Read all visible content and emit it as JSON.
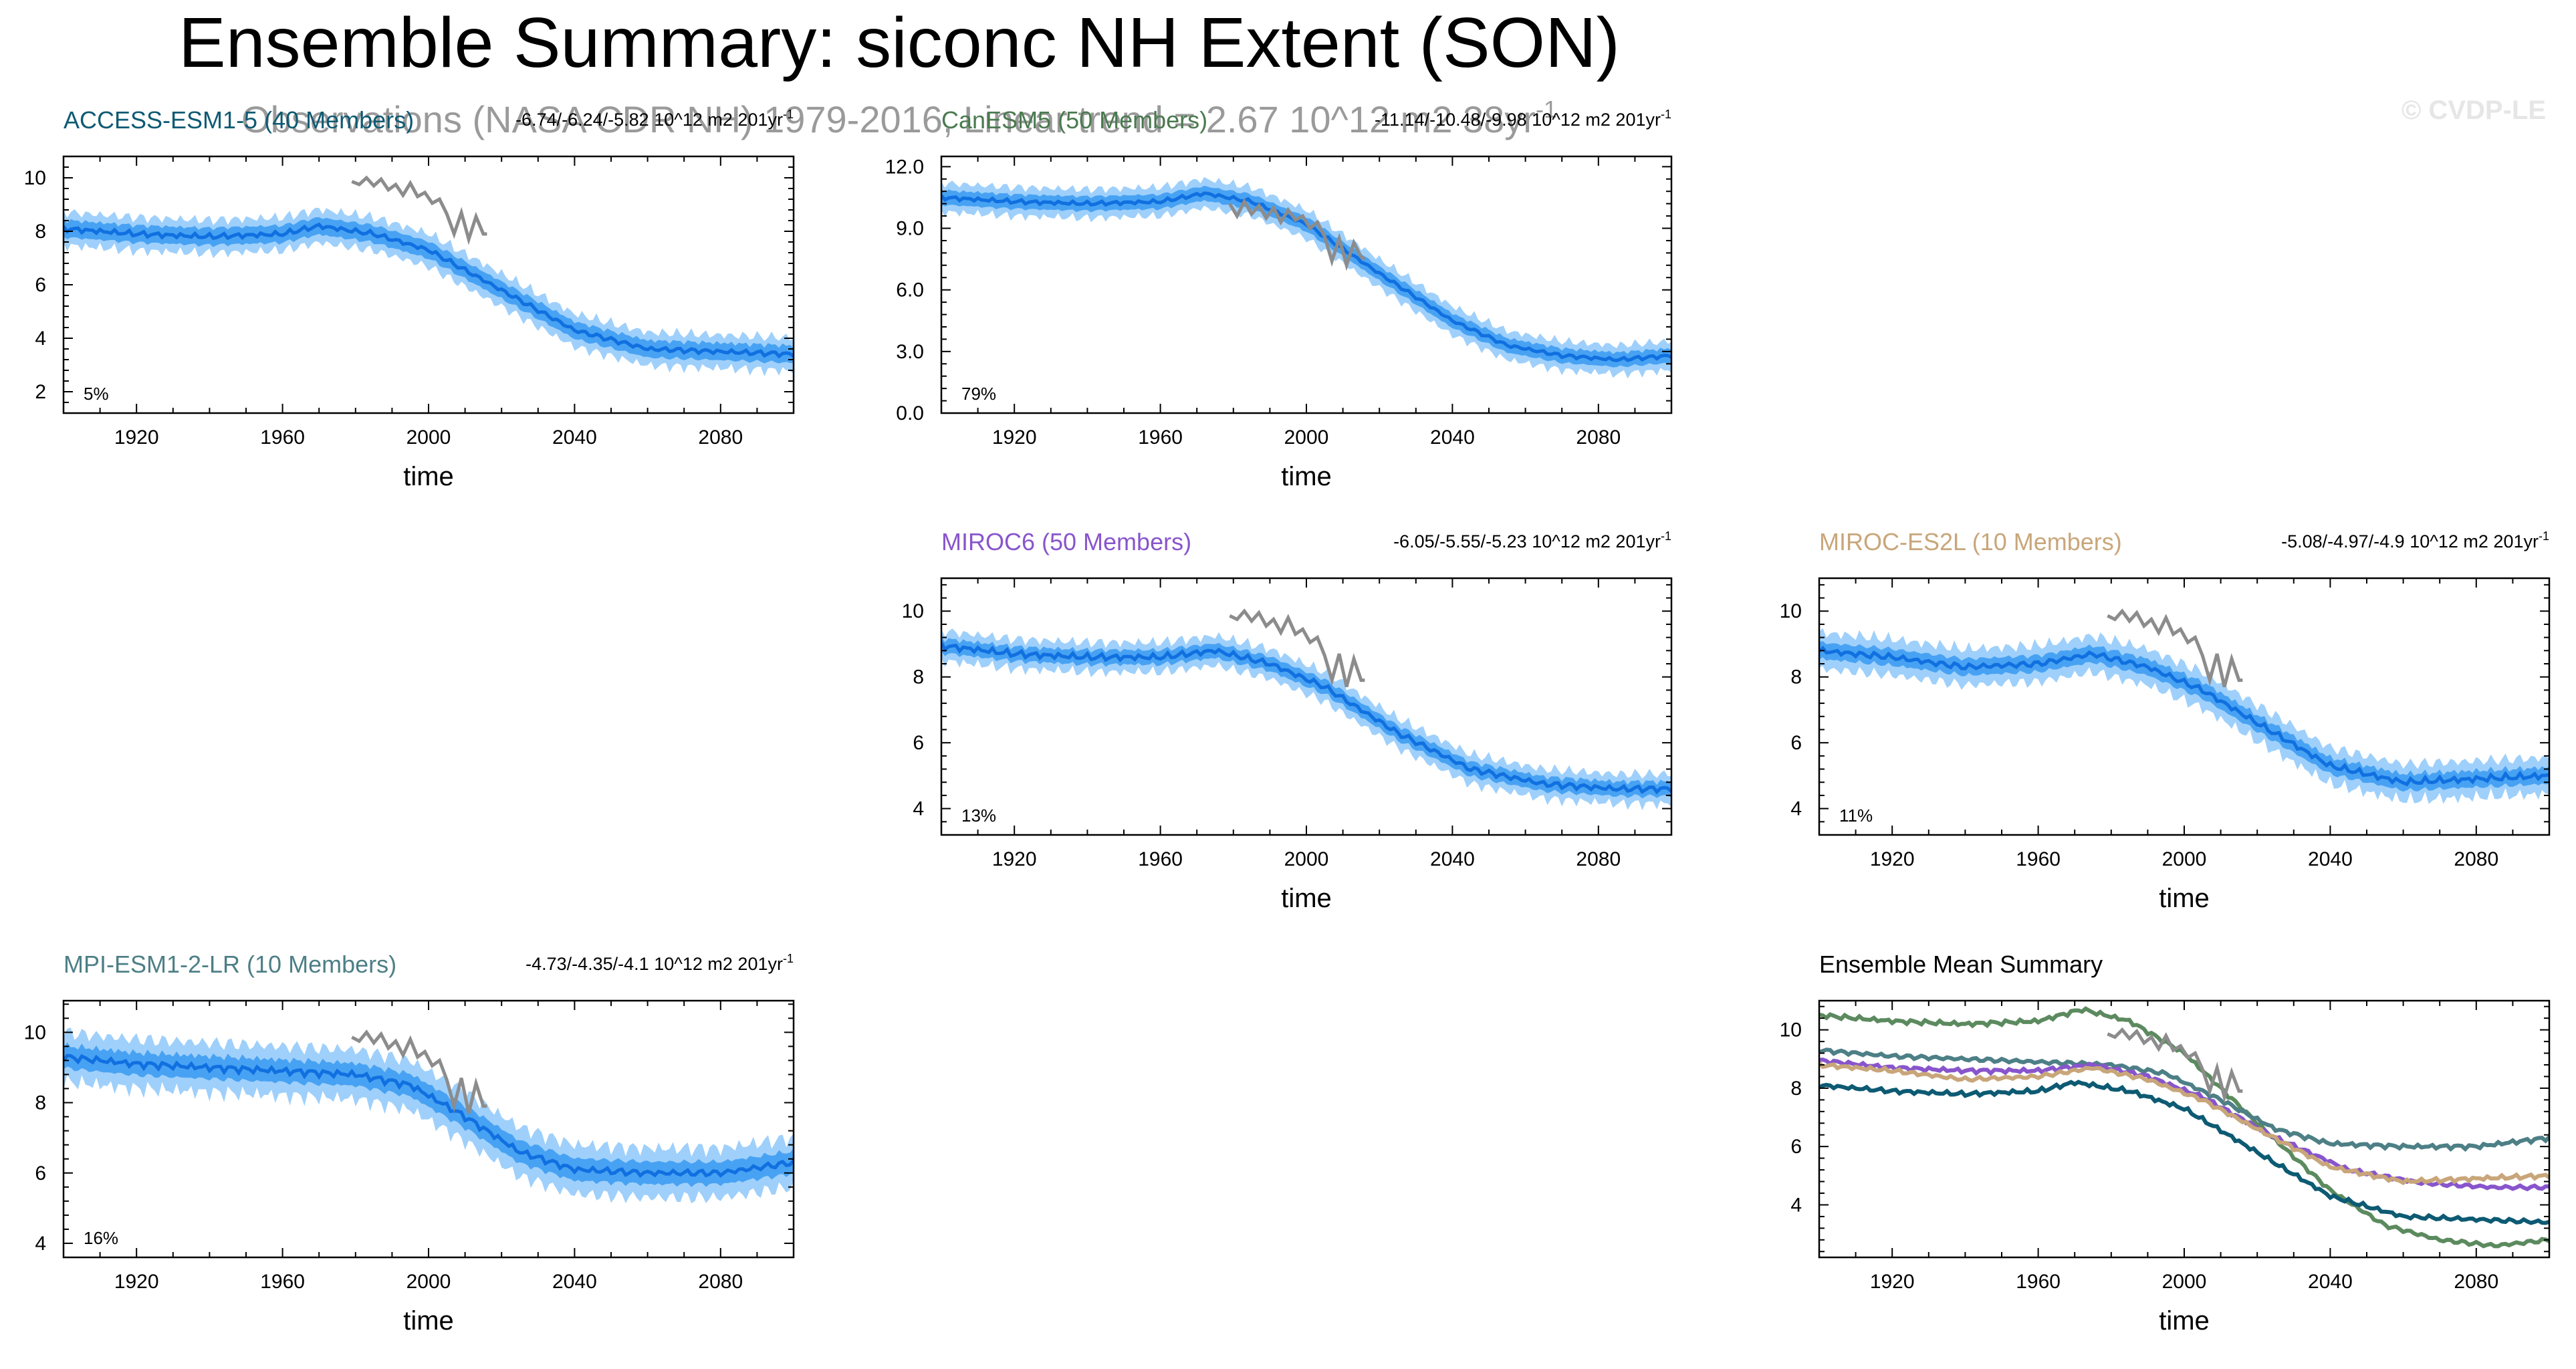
{
  "figure": {
    "title": "Ensemble Summary: siconc NH Extent (SON)",
    "subtitle": "Observations (NASA CDR NH) 1979-2016, Linear trend = 2.67 10^12 m2 38yr",
    "subtitle_sup": "-1",
    "watermark": "© CVDP-LE",
    "colors": {
      "band_outer": "#9fd0fb",
      "band_inner": "#2b93f0",
      "ens_mean": "#1170e0",
      "obs": "#8c8c8c",
      "axis": "#000000"
    }
  },
  "chart_data": [
    {
      "id": "access",
      "type": "line",
      "title": "ACCESS-ESM1-5 (40 Members)",
      "title_color": "#0d5a73",
      "trend": "-6.74/-6.24/-5.82 10^12 m2 201yr",
      "trend_sup": "-1",
      "percent_label": "5%",
      "xlabel": "time",
      "xlim": [
        1900,
        2100
      ],
      "xticks": [
        1920,
        1960,
        2000,
        2040,
        2080
      ],
      "ylim": [
        1.2,
        10.8
      ],
      "yticks": [
        2,
        4,
        6,
        8,
        10
      ],
      "ytick_labels": [
        "2",
        "4",
        "6",
        "8",
        "10"
      ],
      "ensemble_mean_anchors": [
        [
          1900,
          8.1
        ],
        [
          1920,
          7.9
        ],
        [
          1940,
          7.8
        ],
        [
          1960,
          7.9
        ],
        [
          1970,
          8.2
        ],
        [
          1985,
          7.9
        ],
        [
          2000,
          7.3
        ],
        [
          2020,
          5.8
        ],
        [
          2040,
          4.3
        ],
        [
          2060,
          3.6
        ],
        [
          2080,
          3.5
        ],
        [
          2100,
          3.4
        ]
      ],
      "band_inner_halfwidth": 0.32,
      "band_outer_halfwidth": 0.62,
      "observations": [
        [
          1979,
          9.86
        ],
        [
          1981,
          9.75
        ],
        [
          1983,
          10.0
        ],
        [
          1985,
          9.7
        ],
        [
          1987,
          9.95
        ],
        [
          1989,
          9.55
        ],
        [
          1991,
          9.75
        ],
        [
          1993,
          9.35
        ],
        [
          1995,
          9.8
        ],
        [
          1997,
          9.3
        ],
        [
          1999,
          9.45
        ],
        [
          2001,
          9.05
        ],
        [
          2003,
          9.2
        ],
        [
          2005,
          8.65
        ],
        [
          2007,
          7.9
        ],
        [
          2009,
          8.7
        ],
        [
          2011,
          7.7
        ],
        [
          2013,
          8.55
        ],
        [
          2015,
          7.9
        ],
        [
          2016,
          7.9
        ]
      ]
    },
    {
      "id": "canesm",
      "type": "line",
      "title": "CanESM5 (50 Members)",
      "title_color": "#4a7a4f",
      "trend": "-11.14/-10.48/-9.98 10^12 m2 201yr",
      "trend_sup": "-1",
      "percent_label": "79%",
      "xlabel": "time",
      "xlim": [
        1900,
        2100
      ],
      "xticks": [
        1920,
        1960,
        2000,
        2040,
        2080
      ],
      "ylim": [
        0,
        12.5
      ],
      "yticks": [
        0,
        3,
        6,
        9,
        12
      ],
      "ytick_labels": [
        "0.0",
        "3.0",
        "6.0",
        "9.0",
        "12.0"
      ],
      "ensemble_mean_anchors": [
        [
          1900,
          10.5
        ],
        [
          1920,
          10.3
        ],
        [
          1940,
          10.2
        ],
        [
          1960,
          10.3
        ],
        [
          1972,
          10.7
        ],
        [
          1985,
          10.3
        ],
        [
          2000,
          9.2
        ],
        [
          2020,
          6.8
        ],
        [
          2040,
          4.5
        ],
        [
          2055,
          3.3
        ],
        [
          2070,
          2.8
        ],
        [
          2085,
          2.6
        ],
        [
          2100,
          2.8
        ]
      ],
      "band_inner_halfwidth": 0.35,
      "band_outer_halfwidth": 0.7,
      "observations": [
        [
          1979,
          10.2
        ],
        [
          1981,
          9.6
        ],
        [
          1983,
          10.3
        ],
        [
          1985,
          9.7
        ],
        [
          1987,
          10.1
        ],
        [
          1989,
          9.5
        ],
        [
          1991,
          10.0
        ],
        [
          1993,
          9.3
        ],
        [
          1995,
          9.9
        ],
        [
          1997,
          9.4
        ],
        [
          1999,
          9.6
        ],
        [
          2001,
          9.0
        ],
        [
          2003,
          9.3
        ],
        [
          2005,
          8.6
        ],
        [
          2007,
          7.4
        ],
        [
          2009,
          8.5
        ],
        [
          2011,
          7.2
        ],
        [
          2013,
          8.3
        ],
        [
          2015,
          7.6
        ],
        [
          2016,
          7.5
        ]
      ]
    },
    {
      "id": "miroc6",
      "type": "line",
      "title": "MIROC6 (50 Members)",
      "title_color": "#8855cc",
      "trend": "-6.05/-5.55/-5.23 10^12 m2 201yr",
      "trend_sup": "-1",
      "percent_label": "13%",
      "xlabel": "time",
      "xlim": [
        1900,
        2100
      ],
      "xticks": [
        1920,
        1960,
        2000,
        2040,
        2080
      ],
      "ylim": [
        3.2,
        11.0
      ],
      "yticks": [
        4,
        6,
        8,
        10
      ],
      "ytick_labels": [
        "4",
        "6",
        "8",
        "10"
      ],
      "ensemble_mean_anchors": [
        [
          1900,
          8.95
        ],
        [
          1920,
          8.7
        ],
        [
          1940,
          8.6
        ],
        [
          1960,
          8.6
        ],
        [
          1975,
          8.8
        ],
        [
          1990,
          8.4
        ],
        [
          2005,
          7.7
        ],
        [
          2025,
          6.3
        ],
        [
          2045,
          5.2
        ],
        [
          2065,
          4.75
        ],
        [
          2085,
          4.6
        ],
        [
          2100,
          4.6
        ]
      ],
      "band_inner_halfwidth": 0.22,
      "band_outer_halfwidth": 0.45,
      "observations": [
        [
          1979,
          9.86
        ],
        [
          1981,
          9.75
        ],
        [
          1983,
          10.0
        ],
        [
          1985,
          9.7
        ],
        [
          1987,
          9.95
        ],
        [
          1989,
          9.55
        ],
        [
          1991,
          9.75
        ],
        [
          1993,
          9.35
        ],
        [
          1995,
          9.8
        ],
        [
          1997,
          9.3
        ],
        [
          1999,
          9.45
        ],
        [
          2001,
          9.05
        ],
        [
          2003,
          9.2
        ],
        [
          2005,
          8.65
        ],
        [
          2007,
          7.9
        ],
        [
          2009,
          8.7
        ],
        [
          2011,
          7.7
        ],
        [
          2013,
          8.55
        ],
        [
          2015,
          7.9
        ],
        [
          2016,
          7.9
        ]
      ]
    },
    {
      "id": "miroces2l",
      "type": "line",
      "title": "MIROC-ES2L (10 Members)",
      "title_color": "#c8a67a",
      "trend": "-5.08/-4.97/-4.9 10^12 m2 201yr",
      "trend_sup": "-1",
      "percent_label": "11%",
      "xlabel": "time",
      "xlim": [
        1900,
        2100
      ],
      "xticks": [
        1920,
        1960,
        2000,
        2040,
        2080
      ],
      "ylim": [
        3.2,
        11.0
      ],
      "yticks": [
        4,
        6,
        8,
        10
      ],
      "ytick_labels": [
        "4",
        "6",
        "8",
        "10"
      ],
      "ensemble_mean_anchors": [
        [
          1900,
          8.8
        ],
        [
          1920,
          8.6
        ],
        [
          1940,
          8.3
        ],
        [
          1960,
          8.4
        ],
        [
          1975,
          8.7
        ],
        [
          1990,
          8.3
        ],
        [
          2005,
          7.6
        ],
        [
          2020,
          6.6
        ],
        [
          2040,
          5.3
        ],
        [
          2060,
          4.8
        ],
        [
          2080,
          4.9
        ],
        [
          2100,
          5.0
        ]
      ],
      "band_inner_halfwidth": 0.25,
      "band_outer_halfwidth": 0.55,
      "observations": [
        [
          1979,
          9.86
        ],
        [
          1981,
          9.75
        ],
        [
          1983,
          10.0
        ],
        [
          1985,
          9.7
        ],
        [
          1987,
          9.95
        ],
        [
          1989,
          9.55
        ],
        [
          1991,
          9.75
        ],
        [
          1993,
          9.35
        ],
        [
          1995,
          9.8
        ],
        [
          1997,
          9.3
        ],
        [
          1999,
          9.45
        ],
        [
          2001,
          9.05
        ],
        [
          2003,
          9.2
        ],
        [
          2005,
          8.65
        ],
        [
          2007,
          7.9
        ],
        [
          2009,
          8.7
        ],
        [
          2011,
          7.7
        ],
        [
          2013,
          8.55
        ],
        [
          2015,
          7.9
        ],
        [
          2016,
          7.9
        ]
      ]
    },
    {
      "id": "mpi",
      "type": "line",
      "title": "MPI-ESM1-2-LR (10 Members)",
      "title_color": "#4d7f86",
      "trend": "-4.73/-4.35/-4.1 10^12 m2 201yr",
      "trend_sup": "-1",
      "percent_label": "16%",
      "xlabel": "time",
      "xlim": [
        1900,
        2100
      ],
      "xticks": [
        1920,
        1960,
        2000,
        2040,
        2080
      ],
      "ylim": [
        3.6,
        10.9
      ],
      "yticks": [
        4,
        6,
        8,
        10
      ],
      "ytick_labels": [
        "4",
        "6",
        "8",
        "10"
      ],
      "ensemble_mean_anchors": [
        [
          1900,
          9.3
        ],
        [
          1920,
          9.1
        ],
        [
          1940,
          9.0
        ],
        [
          1960,
          8.9
        ],
        [
          1980,
          8.8
        ],
        [
          1995,
          8.5
        ],
        [
          2010,
          7.6
        ],
        [
          2025,
          6.6
        ],
        [
          2040,
          6.1
        ],
        [
          2060,
          6.0
        ],
        [
          2080,
          6.0
        ],
        [
          2100,
          6.3
        ]
      ],
      "band_inner_halfwidth": 0.32,
      "band_outer_halfwidth": 0.7,
      "observations": [
        [
          1979,
          9.86
        ],
        [
          1981,
          9.75
        ],
        [
          1983,
          10.0
        ],
        [
          1985,
          9.7
        ],
        [
          1987,
          9.95
        ],
        [
          1989,
          9.55
        ],
        [
          1991,
          9.75
        ],
        [
          1993,
          9.35
        ],
        [
          1995,
          9.8
        ],
        [
          1997,
          9.3
        ],
        [
          1999,
          9.45
        ],
        [
          2001,
          9.05
        ],
        [
          2003,
          9.2
        ],
        [
          2005,
          8.65
        ],
        [
          2007,
          7.9
        ],
        [
          2009,
          8.7
        ],
        [
          2011,
          7.7
        ],
        [
          2013,
          8.55
        ],
        [
          2015,
          7.9
        ],
        [
          2016,
          7.9
        ]
      ]
    },
    {
      "id": "summary",
      "type": "line",
      "title": "Ensemble Mean Summary",
      "title_color": "#000000",
      "xlabel": "time",
      "xlim": [
        1900,
        2100
      ],
      "xticks": [
        1920,
        1960,
        2000,
        2040,
        2080
      ],
      "ylim": [
        2.2,
        11.0
      ],
      "yticks": [
        4,
        6,
        8,
        10
      ],
      "ytick_labels": [
        "4",
        "6",
        "8",
        "10"
      ],
      "observations": [
        [
          1979,
          9.86
        ],
        [
          1981,
          9.75
        ],
        [
          1983,
          10.0
        ],
        [
          1985,
          9.7
        ],
        [
          1987,
          9.95
        ],
        [
          1989,
          9.55
        ],
        [
          1991,
          9.75
        ],
        [
          1993,
          9.35
        ],
        [
          1995,
          9.8
        ],
        [
          1997,
          9.3
        ],
        [
          1999,
          9.45
        ],
        [
          2001,
          9.05
        ],
        [
          2003,
          9.2
        ],
        [
          2005,
          8.65
        ],
        [
          2007,
          7.9
        ],
        [
          2009,
          8.7
        ],
        [
          2011,
          7.7
        ],
        [
          2013,
          8.55
        ],
        [
          2015,
          7.9
        ],
        [
          2016,
          7.9
        ]
      ],
      "series": [
        {
          "name": "CanESM5",
          "color": "#5c8a5f",
          "anchors": [
            [
              1900,
              10.5
            ],
            [
              1920,
              10.3
            ],
            [
              1940,
              10.2
            ],
            [
              1960,
              10.3
            ],
            [
              1972,
              10.7
            ],
            [
              1985,
              10.3
            ],
            [
              2000,
              9.2
            ],
            [
              2020,
              6.8
            ],
            [
              2040,
              4.5
            ],
            [
              2055,
              3.3
            ],
            [
              2070,
              2.8
            ],
            [
              2085,
              2.6
            ],
            [
              2100,
              2.8
            ]
          ]
        },
        {
          "name": "MPI-ESM1-2-LR",
          "color": "#4d7f86",
          "anchors": [
            [
              1900,
              9.3
            ],
            [
              1920,
              9.1
            ],
            [
              1940,
              9.0
            ],
            [
              1960,
              8.9
            ],
            [
              1980,
              8.8
            ],
            [
              1995,
              8.5
            ],
            [
              2010,
              7.6
            ],
            [
              2025,
              6.6
            ],
            [
              2040,
              6.1
            ],
            [
              2060,
              6.0
            ],
            [
              2080,
              6.0
            ],
            [
              2100,
              6.3
            ]
          ]
        },
        {
          "name": "MIROC6",
          "color": "#8855cc",
          "anchors": [
            [
              1900,
              8.95
            ],
            [
              1920,
              8.7
            ],
            [
              1940,
              8.6
            ],
            [
              1960,
              8.6
            ],
            [
              1975,
              8.8
            ],
            [
              1990,
              8.4
            ],
            [
              2005,
              7.7
            ],
            [
              2025,
              6.3
            ],
            [
              2045,
              5.2
            ],
            [
              2065,
              4.75
            ],
            [
              2085,
              4.6
            ],
            [
              2100,
              4.6
            ]
          ]
        },
        {
          "name": "MIROC-ES2L",
          "color": "#c8a67a",
          "anchors": [
            [
              1900,
              8.8
            ],
            [
              1920,
              8.6
            ],
            [
              1940,
              8.3
            ],
            [
              1960,
              8.4
            ],
            [
              1975,
              8.7
            ],
            [
              1990,
              8.3
            ],
            [
              2005,
              7.6
            ],
            [
              2020,
              6.6
            ],
            [
              2040,
              5.3
            ],
            [
              2060,
              4.8
            ],
            [
              2080,
              4.9
            ],
            [
              2100,
              5.0
            ]
          ]
        },
        {
          "name": "ACCESS-ESM1-5",
          "color": "#0d5a73",
          "anchors": [
            [
              1900,
              8.1
            ],
            [
              1920,
              7.9
            ],
            [
              1940,
              7.8
            ],
            [
              1960,
              7.9
            ],
            [
              1970,
              8.2
            ],
            [
              1985,
              7.9
            ],
            [
              2000,
              7.3
            ],
            [
              2020,
              5.8
            ],
            [
              2040,
              4.3
            ],
            [
              2060,
              3.6
            ],
            [
              2080,
              3.5
            ],
            [
              2100,
              3.4
            ]
          ]
        }
      ]
    }
  ]
}
